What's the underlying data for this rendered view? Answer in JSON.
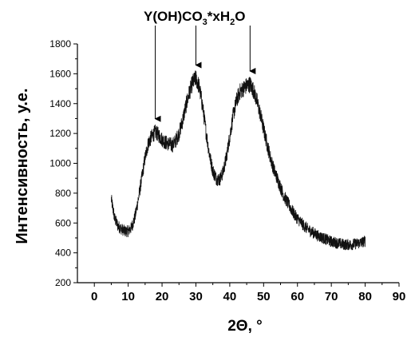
{
  "chart_data": {
    "type": "line",
    "annotation": {
      "prefix": "Y(OH)CO",
      "sub1": "3",
      "mid": "*xH",
      "sub2": "2",
      "suffix": "O",
      "arrows_at_x": [
        18,
        30,
        46
      ]
    },
    "xlabel": "2Θ, °",
    "ylabel": "Интенсивность, у.е.",
    "xlim": [
      -5,
      90
    ],
    "ylim": [
      200,
      1800
    ],
    "xticks": [
      0,
      10,
      20,
      30,
      40,
      50,
      60,
      70,
      80,
      90
    ],
    "yticks": [
      200,
      400,
      600,
      800,
      1000,
      1200,
      1400,
      1600,
      1800
    ],
    "grid": false,
    "series": [
      {
        "color": "#111111",
        "noise_amplitude": 55,
        "x": [
          5,
          6,
          7,
          8,
          9,
          10,
          11,
          12,
          13,
          14,
          15,
          16,
          17,
          18,
          19,
          20,
          21,
          22,
          23,
          24,
          25,
          26,
          27,
          28,
          29,
          30,
          31,
          32,
          33,
          34,
          35,
          36,
          37,
          38,
          39,
          40,
          41,
          42,
          43,
          44,
          45,
          46,
          47,
          48,
          49,
          50,
          51,
          52,
          53,
          54,
          55,
          56,
          57,
          58,
          59,
          60,
          61,
          62,
          63,
          64,
          65,
          66,
          67,
          68,
          69,
          70,
          71,
          72,
          73,
          74,
          75,
          76,
          77,
          78,
          79,
          80
        ],
        "y": [
          760,
          630,
          580,
          560,
          545,
          545,
          570,
          640,
          760,
          900,
          1040,
          1140,
          1180,
          1210,
          1190,
          1160,
          1140,
          1130,
          1120,
          1150,
          1200,
          1280,
          1380,
          1470,
          1540,
          1570,
          1510,
          1380,
          1210,
          1060,
          950,
          900,
          890,
          940,
          1040,
          1180,
          1320,
          1420,
          1480,
          1500,
          1520,
          1530,
          1490,
          1420,
          1330,
          1230,
          1130,
          1040,
          960,
          900,
          840,
          780,
          740,
          700,
          660,
          630,
          605,
          580,
          560,
          545,
          530,
          515,
          505,
          495,
          485,
          475,
          470,
          465,
          460,
          455,
          455,
          455,
          460,
          465,
          470,
          480
        ]
      }
    ]
  }
}
